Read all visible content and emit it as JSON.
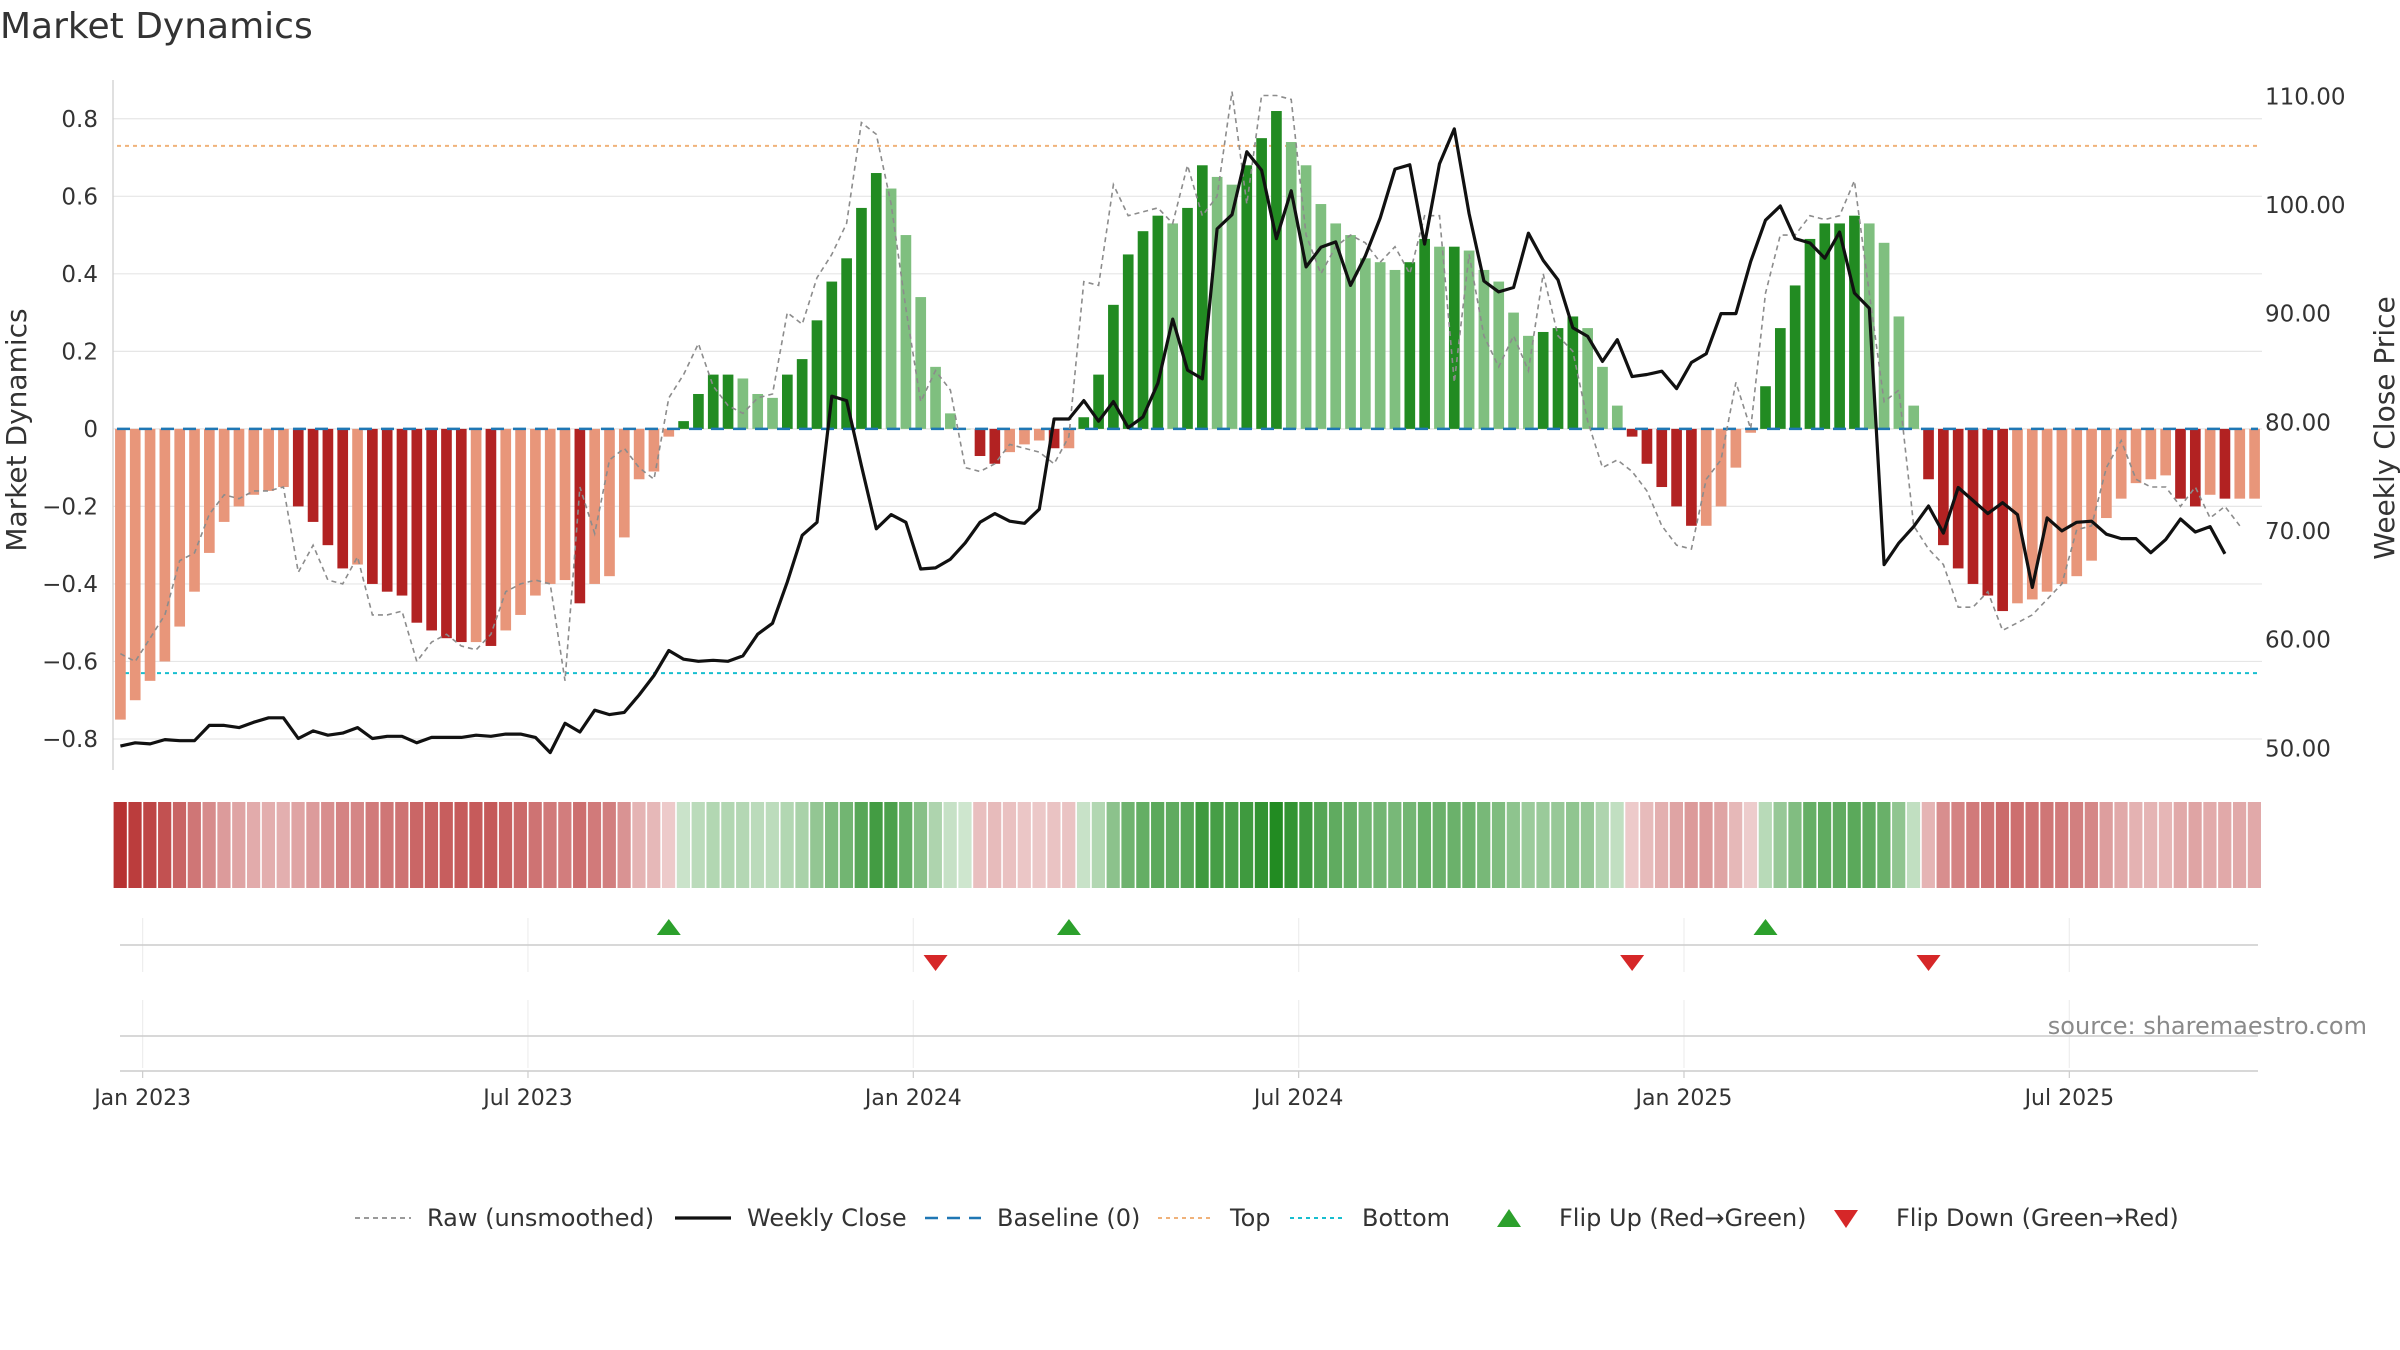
{
  "chart_data": {
    "type": "bar",
    "title": "Market Dynamics",
    "ylabel": "Market Dynamics",
    "y2label": "Weekly Close Price",
    "ylim": [
      -0.88,
      0.9
    ],
    "y2lim": [
      48.0,
      111.5
    ],
    "y_ticks": [
      {
        "value": -0.8,
        "label": "−0.8"
      },
      {
        "value": -0.6,
        "label": "−0.6"
      },
      {
        "value": -0.4,
        "label": "−0.4"
      },
      {
        "value": -0.2,
        "label": "−0.2"
      },
      {
        "value": 0,
        "label": "0"
      },
      {
        "value": 0.2,
        "label": "0.2"
      },
      {
        "value": 0.4,
        "label": "0.4"
      },
      {
        "value": 0.6,
        "label": "0.6"
      },
      {
        "value": 0.8,
        "label": "0.8"
      }
    ],
    "y2_ticks": [
      {
        "value": 50,
        "label": "50.00"
      },
      {
        "value": 60,
        "label": "60.00"
      },
      {
        "value": 70,
        "label": "70.00"
      },
      {
        "value": 80,
        "label": "80.00"
      },
      {
        "value": 90,
        "label": "90.00"
      },
      {
        "value": 100,
        "label": "100.00"
      },
      {
        "value": 110,
        "label": "110.00"
      }
    ],
    "x_ticks": [
      {
        "week": 2,
        "label": "Jan 2023"
      },
      {
        "week": 28,
        "label": "Jul 2023"
      },
      {
        "week": 54,
        "label": "Jan 2024"
      },
      {
        "week": 80,
        "label": "Jul 2024"
      },
      {
        "week": 106,
        "label": "Jan 2025"
      },
      {
        "week": 132,
        "label": "Jul 2025"
      }
    ],
    "top_level": 0.73,
    "bottom_level": -0.63,
    "grid": true,
    "legend_position": "bottom-center",
    "colors": {
      "strong_green": "#228b22",
      "light_green": "#7fbf7f",
      "strong_red": "#b22222",
      "light_red": "#e8967a",
      "raw": "#8c8c8c",
      "close": "#111111",
      "baseline": "#1f77b4",
      "top": "#f0b27a",
      "bottom": "#17becf",
      "flip_up": "#2ca02c",
      "flip_down": "#d62728"
    },
    "series": [
      {
        "name": "Market Dynamics",
        "values": [
          -0.75,
          -0.7,
          -0.65,
          -0.6,
          -0.51,
          -0.42,
          -0.32,
          -0.24,
          -0.2,
          -0.17,
          -0.16,
          -0.15,
          -0.2,
          -0.24,
          -0.3,
          -0.36,
          -0.35,
          -0.4,
          -0.42,
          -0.43,
          -0.5,
          -0.52,
          -0.54,
          -0.55,
          -0.55,
          -0.56,
          -0.52,
          -0.48,
          -0.43,
          -0.4,
          -0.39,
          -0.45,
          -0.4,
          -0.38,
          -0.28,
          -0.13,
          -0.11,
          -0.02,
          0.02,
          0.09,
          0.14,
          0.14,
          0.13,
          0.09,
          0.08,
          0.14,
          0.18,
          0.28,
          0.38,
          0.44,
          0.57,
          0.66,
          0.62,
          0.5,
          0.34,
          0.16,
          0.04,
          0.0,
          -0.07,
          -0.09,
          -0.06,
          -0.04,
          -0.03,
          -0.05,
          -0.05,
          0.03,
          0.14,
          0.32,
          0.45,
          0.51,
          0.55,
          0.53,
          0.57,
          0.68,
          0.65,
          0.63,
          0.68,
          0.75,
          0.82,
          0.74,
          0.68,
          0.58,
          0.53,
          0.5,
          0.44,
          0.43,
          0.41,
          0.43,
          0.49,
          0.47,
          0.47,
          0.46,
          0.41,
          0.38,
          0.3,
          0.24,
          0.25,
          0.26,
          0.29,
          0.26,
          0.16,
          0.06,
          -0.02,
          -0.09,
          -0.15,
          -0.2,
          -0.25,
          -0.25,
          -0.2,
          -0.1,
          -0.01,
          0.11,
          0.26,
          0.37,
          0.49,
          0.53,
          0.53,
          0.55,
          0.53,
          0.48,
          0.29,
          0.06,
          -0.13,
          -0.3,
          -0.36,
          -0.4,
          -0.43,
          -0.47,
          -0.45,
          -0.44,
          -0.42,
          -0.4,
          -0.38,
          -0.34,
          -0.23,
          -0.18,
          -0.14,
          -0.13,
          -0.12,
          -0.18,
          -0.2,
          -0.17,
          -0.18,
          -0.18,
          -0.18
        ]
      },
      {
        "name": "Raw (unsmoothed)",
        "values": [
          -0.58,
          -0.6,
          -0.54,
          -0.48,
          -0.34,
          -0.32,
          -0.22,
          -0.17,
          -0.18,
          -0.16,
          -0.16,
          -0.15,
          -0.37,
          -0.3,
          -0.39,
          -0.4,
          -0.33,
          -0.48,
          -0.48,
          -0.47,
          -0.6,
          -0.55,
          -0.53,
          -0.56,
          -0.57,
          -0.53,
          -0.42,
          -0.4,
          -0.39,
          -0.4,
          -0.65,
          -0.15,
          -0.27,
          -0.08,
          -0.05,
          -0.1,
          -0.13,
          0.08,
          0.14,
          0.22,
          0.11,
          0.06,
          0.04,
          0.08,
          0.09,
          0.3,
          0.27,
          0.39,
          0.45,
          0.53,
          0.79,
          0.76,
          0.58,
          0.31,
          0.07,
          0.15,
          0.1,
          -0.1,
          -0.11,
          -0.09,
          -0.04,
          -0.05,
          -0.06,
          -0.09,
          -0.02,
          0.38,
          0.37,
          0.63,
          0.55,
          0.56,
          0.57,
          0.53,
          0.68,
          0.55,
          0.6,
          0.87,
          0.58,
          0.86,
          0.86,
          0.85,
          0.5,
          0.4,
          0.47,
          0.5,
          0.48,
          0.43,
          0.47,
          0.4,
          0.55,
          0.55,
          0.12,
          0.45,
          0.24,
          0.16,
          0.24,
          0.15,
          0.4,
          0.24,
          0.2,
          0.02,
          -0.1,
          -0.08,
          -0.11,
          -0.16,
          -0.25,
          -0.3,
          -0.31,
          -0.13,
          -0.08,
          0.12,
          0.0,
          0.35,
          0.5,
          0.5,
          0.55,
          0.54,
          0.55,
          0.64,
          0.35,
          0.07,
          0.1,
          -0.25,
          -0.31,
          -0.35,
          -0.46,
          -0.46,
          -0.42,
          -0.52,
          -0.5,
          -0.48,
          -0.44,
          -0.4,
          -0.26,
          -0.25,
          -0.1,
          -0.03,
          -0.13,
          -0.15,
          -0.15,
          -0.2,
          -0.15,
          -0.23,
          -0.2,
          -0.25
        ]
      },
      {
        "name": "Weekly Close",
        "values": [
          50.2,
          50.5,
          50.4,
          50.8,
          50.7,
          50.7,
          52.1,
          52.1,
          51.9,
          52.4,
          52.8,
          52.8,
          50.9,
          51.6,
          51.2,
          51.4,
          51.9,
          50.9,
          51.1,
          51.1,
          50.5,
          51.0,
          51.0,
          51.0,
          51.2,
          51.1,
          51.3,
          51.3,
          51.0,
          49.6,
          52.3,
          51.5,
          53.5,
          53.1,
          53.3,
          54.9,
          56.7,
          59.0,
          58.2,
          58.0,
          58.1,
          58.0,
          58.5,
          60.5,
          61.5,
          65.3,
          69.6,
          70.8,
          82.4,
          82.0,
          76.0,
          70.2,
          71.5,
          70.8,
          66.5,
          66.6,
          67.4,
          68.9,
          70.8,
          71.6,
          70.9,
          70.7,
          72.0,
          80.3,
          80.3,
          82.0,
          80.1,
          81.9,
          79.5,
          80.5,
          83.6,
          89.5,
          84.8,
          84.0,
          97.8,
          99.1,
          104.9,
          103.2,
          96.9,
          101.3,
          94.3,
          96.1,
          96.6,
          92.6,
          95.3,
          98.8,
          103.3,
          103.7,
          96.4,
          103.8,
          107.0,
          99.2,
          93.0,
          92.0,
          92.4,
          97.4,
          94.9,
          93.1,
          88.7,
          87.9,
          85.6,
          87.6,
          84.2,
          84.4,
          84.7,
          83.1,
          85.5,
          86.3,
          90.0,
          90.0,
          94.8,
          98.6,
          99.9,
          96.9,
          96.5,
          95.1,
          97.5,
          91.9,
          90.5,
          66.9,
          68.9,
          70.4,
          72.3,
          69.8,
          74.0,
          72.8,
          71.6,
          72.6,
          71.5,
          64.8,
          71.2,
          70.0,
          70.8,
          70.9,
          69.7,
          69.3,
          69.3,
          68.0,
          69.2,
          71.1,
          69.9,
          70.4,
          67.9
        ]
      }
    ],
    "flip_up_weeks": [
      37,
      64,
      111
    ],
    "flip_down_weeks": [
      55,
      102,
      122
    ],
    "strip_values": [
      -0.75,
      -0.7,
      -0.65,
      -0.6,
      -0.51,
      -0.42,
      -0.32,
      -0.24,
      -0.2,
      -0.17,
      -0.16,
      -0.15,
      -0.2,
      -0.24,
      -0.3,
      -0.36,
      -0.35,
      -0.4,
      -0.42,
      -0.43,
      -0.5,
      -0.52,
      -0.54,
      -0.55,
      -0.55,
      -0.56,
      -0.52,
      -0.48,
      -0.43,
      -0.4,
      -0.39,
      -0.45,
      -0.4,
      -0.38,
      -0.28,
      -0.13,
      -0.11,
      -0.02,
      0.02,
      0.09,
      0.14,
      0.14,
      0.13,
      0.09,
      0.08,
      0.14,
      0.18,
      0.28,
      0.38,
      0.44,
      0.57,
      0.66,
      0.62,
      0.5,
      0.34,
      0.16,
      0.04,
      0.0,
      -0.07,
      -0.09,
      -0.06,
      -0.04,
      -0.03,
      -0.05,
      -0.05,
      0.03,
      0.14,
      0.32,
      0.45,
      0.51,
      0.55,
      0.53,
      0.57,
      0.68,
      0.65,
      0.63,
      0.68,
      0.75,
      0.82,
      0.74,
      0.68,
      0.58,
      0.53,
      0.5,
      0.44,
      0.43,
      0.41,
      0.43,
      0.49,
      0.47,
      0.47,
      0.46,
      0.41,
      0.38,
      0.3,
      0.24,
      0.25,
      0.26,
      0.29,
      0.26,
      0.16,
      0.06,
      -0.02,
      -0.09,
      -0.15,
      -0.2,
      -0.25,
      -0.25,
      -0.2,
      -0.1,
      -0.01,
      0.11,
      0.26,
      0.37,
      0.49,
      0.53,
      0.53,
      0.55,
      0.53,
      0.48,
      0.29,
      0.06,
      -0.13,
      -0.3,
      -0.36,
      -0.4,
      -0.43,
      -0.47,
      -0.45,
      -0.44,
      -0.42,
      -0.4,
      -0.38,
      -0.34,
      -0.23,
      -0.18,
      -0.14,
      -0.13,
      -0.12,
      -0.18,
      -0.2,
      -0.17,
      -0.18,
      -0.18,
      -0.18
    ],
    "legend": [
      {
        "key": "raw",
        "label": "Raw (unsmoothed)"
      },
      {
        "key": "close",
        "label": "Weekly Close"
      },
      {
        "key": "baseline",
        "label": "Baseline (0)"
      },
      {
        "key": "top",
        "label": "Top"
      },
      {
        "key": "bottom",
        "label": "Bottom"
      },
      {
        "key": "flip_up",
        "label": "Flip Up (Red→Green)"
      },
      {
        "key": "flip_down",
        "label": "Flip Down (Green→Red)"
      }
    ]
  },
  "source_note": "source: sharemaestro.com"
}
